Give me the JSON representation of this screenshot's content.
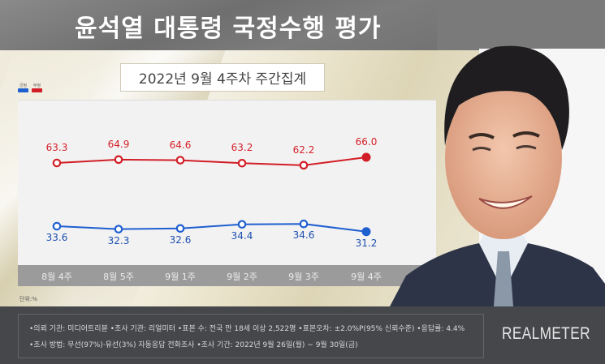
{
  "header": {
    "title": "윤석열 대통령 국정수행 평가",
    "subtitle": "2022년 9월 4주차 주간집계"
  },
  "legend": [
    {
      "label": "긍정",
      "color": "#1f5fd0"
    },
    {
      "label": "부정",
      "color": "#d21e26"
    }
  ],
  "unit_label": "단위:%",
  "footer": {
    "line1": "•의뢰 기관: 미디어트리뷴 •조사 기관: 리얼미터 •표본 수: 전국 만 18세 이상 2,522명 •표본오차: ±2.0%P(95% 신뢰수준) •응답률: 4.4%",
    "line2": "•조사 방법: 무선(97%)·유선(3%) 자동응답 전화조사 •조사 기간: 2022년 9월 26일(월) ~ 9월 30일(금)",
    "logo": "REALMETER"
  },
  "chart_data": {
    "type": "line",
    "title": "윤석열 대통령 국정수행 평가",
    "subtitle": "2022년 9월 4주차 주간집계",
    "categories": [
      "8월 4주",
      "8월 5주",
      "9월 1주",
      "9월 2주",
      "9월 3주",
      "9월 4주"
    ],
    "series": [
      {
        "name": "부정",
        "color": "#d21e26",
        "values": [
          63.3,
          64.9,
          64.6,
          63.2,
          62.2,
          66.0
        ]
      },
      {
        "name": "긍정",
        "color": "#1f5fd0",
        "values": [
          33.6,
          32.3,
          32.6,
          34.4,
          34.6,
          31.2
        ]
      }
    ],
    "xlabel": "",
    "ylabel": "단위:%",
    "grid": false,
    "legend_position": "top-left"
  }
}
